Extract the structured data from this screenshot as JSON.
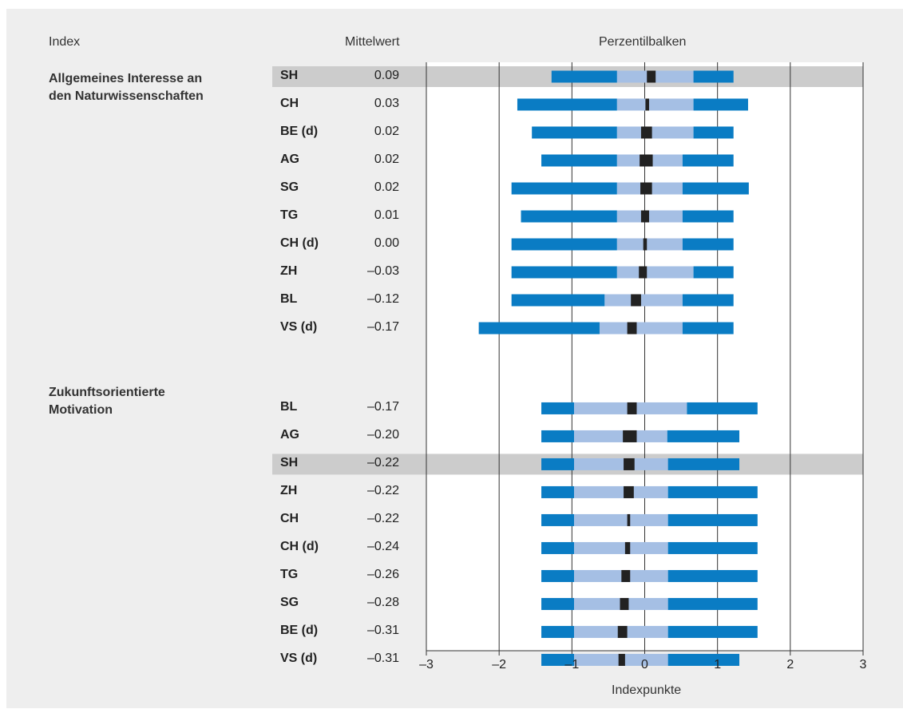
{
  "headers": {
    "index": "Index",
    "mean": "Mittelwert",
    "percentile": "Perzentilbalken"
  },
  "groups": [
    {
      "label": "Allgemeines Interesse an den Naturwissenschaften",
      "label_lines": [
        "Allgemeines Interesse an",
        "den Naturwissenschaften"
      ]
    },
    {
      "label": "Zukunftsorientierte Motivation",
      "label_lines": [
        "Zukunftsorientierte",
        "Motivation"
      ]
    }
  ],
  "colors": {
    "outer": "#0a7cc4",
    "inner": "#a5bfe4",
    "mean_box": "#222222",
    "highlight": "#cccccc",
    "panel": "#eeeeee",
    "plot_bg": "#ffffff",
    "grid": "#333333"
  },
  "chart_data": {
    "type": "bar",
    "subtype": "percentile-bars",
    "title": "",
    "xlabel": "Indexpunkte",
    "xlim": [
      -3,
      3
    ],
    "xticks": [
      -3,
      -2,
      -1,
      0,
      1,
      2,
      3
    ],
    "xtick_labels": [
      "–3",
      "–2",
      "–1",
      "0",
      "1",
      "2",
      "3"
    ],
    "grid": true,
    "highlighted_code": "SH",
    "rows": [
      {
        "group": 0,
        "code": "SH",
        "mean_label": "0.09",
        "mean": 0.09,
        "p5": -1.28,
        "p25": -0.38,
        "ci": [
          0.03,
          0.15
        ],
        "p75": 0.67,
        "p95": 1.22
      },
      {
        "group": 0,
        "code": "CH",
        "mean_label": "0.03",
        "mean": 0.03,
        "p5": -1.75,
        "p25": -0.38,
        "ci": [
          0.01,
          0.06
        ],
        "p75": 0.67,
        "p95": 1.42
      },
      {
        "group": 0,
        "code": "BE (d)",
        "mean_label": "0.02",
        "mean": 0.02,
        "p5": -1.55,
        "p25": -0.38,
        "ci": [
          -0.05,
          0.1
        ],
        "p75": 0.67,
        "p95": 1.22
      },
      {
        "group": 0,
        "code": "AG",
        "mean_label": "0.02",
        "mean": 0.02,
        "p5": -1.42,
        "p25": -0.38,
        "ci": [
          -0.07,
          0.11
        ],
        "p75": 0.52,
        "p95": 1.22
      },
      {
        "group": 0,
        "code": "SG",
        "mean_label": "0.02",
        "mean": 0.02,
        "p5": -1.83,
        "p25": -0.38,
        "ci": [
          -0.06,
          0.1
        ],
        "p75": 0.52,
        "p95": 1.43
      },
      {
        "group": 0,
        "code": "TG",
        "mean_label": "0.01",
        "mean": 0.01,
        "p5": -1.7,
        "p25": -0.38,
        "ci": [
          -0.05,
          0.06
        ],
        "p75": 0.52,
        "p95": 1.22
      },
      {
        "group": 0,
        "code": "CH (d)",
        "mean_label": "0.00",
        "mean": 0.0,
        "p5": -1.83,
        "p25": -0.38,
        "ci": [
          -0.02,
          0.03
        ],
        "p75": 0.52,
        "p95": 1.22
      },
      {
        "group": 0,
        "code": "ZH",
        "mean_label": "–0.03",
        "mean": -0.03,
        "p5": -1.83,
        "p25": -0.38,
        "ci": [
          -0.08,
          0.03
        ],
        "p75": 0.67,
        "p95": 1.22
      },
      {
        "group": 0,
        "code": "BL",
        "mean_label": "–0.12",
        "mean": -0.12,
        "p5": -1.83,
        "p25": -0.55,
        "ci": [
          -0.19,
          -0.05
        ],
        "p75": 0.52,
        "p95": 1.22
      },
      {
        "group": 0,
        "code": "VS (d)",
        "mean_label": "–0.17",
        "mean": -0.17,
        "p5": -2.28,
        "p25": -0.62,
        "ci": [
          -0.24,
          -0.11
        ],
        "p75": 0.52,
        "p95": 1.22
      },
      {
        "group": 1,
        "code": "BL",
        "mean_label": "–0.17",
        "mean": -0.17,
        "p5": -1.42,
        "p25": -0.97,
        "ci": [
          -0.24,
          -0.11
        ],
        "p75": 0.58,
        "p95": 1.55
      },
      {
        "group": 1,
        "code": "AG",
        "mean_label": "–0.20",
        "mean": -0.2,
        "p5": -1.42,
        "p25": -0.97,
        "ci": [
          -0.3,
          -0.11
        ],
        "p75": 0.31,
        "p95": 1.3
      },
      {
        "group": 1,
        "code": "SH",
        "mean_label": "–0.22",
        "mean": -0.22,
        "p5": -1.42,
        "p25": -0.97,
        "ci": [
          -0.29,
          -0.14
        ],
        "p75": 0.32,
        "p95": 1.3
      },
      {
        "group": 1,
        "code": "ZH",
        "mean_label": "–0.22",
        "mean": -0.22,
        "p5": -1.42,
        "p25": -0.97,
        "ci": [
          -0.29,
          -0.15
        ],
        "p75": 0.32,
        "p95": 1.55
      },
      {
        "group": 1,
        "code": "CH",
        "mean_label": "–0.22",
        "mean": -0.22,
        "p5": -1.42,
        "p25": -0.97,
        "ci": [
          -0.24,
          -0.2
        ],
        "p75": 0.32,
        "p95": 1.55
      },
      {
        "group": 1,
        "code": "CH (d)",
        "mean_label": "–0.24",
        "mean": -0.24,
        "p5": -1.42,
        "p25": -0.97,
        "ci": [
          -0.27,
          -0.2
        ],
        "p75": 0.32,
        "p95": 1.55
      },
      {
        "group": 1,
        "code": "TG",
        "mean_label": "–0.26",
        "mean": -0.26,
        "p5": -1.42,
        "p25": -0.97,
        "ci": [
          -0.32,
          -0.2
        ],
        "p75": 0.32,
        "p95": 1.55
      },
      {
        "group": 1,
        "code": "SG",
        "mean_label": "–0.28",
        "mean": -0.28,
        "p5": -1.42,
        "p25": -0.97,
        "ci": [
          -0.34,
          -0.22
        ],
        "p75": 0.32,
        "p95": 1.55
      },
      {
        "group": 1,
        "code": "BE (d)",
        "mean_label": "–0.31",
        "mean": -0.31,
        "p5": -1.42,
        "p25": -0.97,
        "ci": [
          -0.37,
          -0.24
        ],
        "p75": 0.32,
        "p95": 1.55
      },
      {
        "group": 1,
        "code": "VS (d)",
        "mean_label": "–0.31",
        "mean": -0.31,
        "p5": -1.42,
        "p25": -0.97,
        "ci": [
          -0.36,
          -0.27
        ],
        "p75": 0.32,
        "p95": 1.3
      }
    ]
  }
}
